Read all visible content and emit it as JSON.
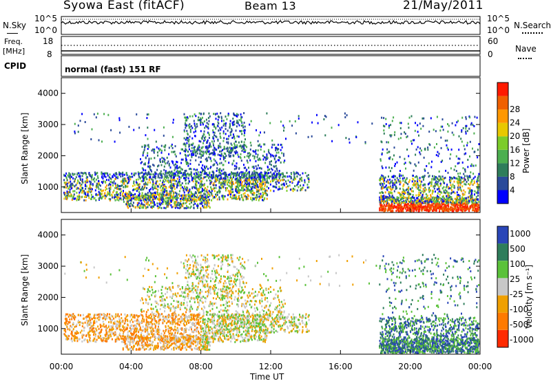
{
  "header": {
    "station": "Syowa East (fitACF)",
    "beam": "Beam 13",
    "date": "21/May/2011"
  },
  "noise_panel": {
    "left_label": "N.Sky",
    "right_label": "N.Search",
    "left_ticks": [
      "10^5",
      "10^0"
    ],
    "right_ticks": [
      "10^5",
      "10^0"
    ]
  },
  "freq_panel": {
    "left_label_1": "Freq.",
    "left_label_2": "[MHz]",
    "right_label": "Nave",
    "left_ticks": [
      "18",
      "8"
    ],
    "right_ticks": [
      "60",
      "0"
    ],
    "cpid_label": "CPID",
    "cpid_text": "normal (fast) 151 RF"
  },
  "colors": {
    "power": [
      "#0000ff",
      "#2a4a9a",
      "#2e7d5b",
      "#4caf50",
      "#7ccc2a",
      "#e8c800",
      "#ff9800",
      "#f06000",
      "#ff1a00"
    ],
    "velocity": [
      "#2a46b8",
      "#2e7d5b",
      "#5bc23a",
      "#c8c8c8",
      "#f0a000",
      "#ff7a00",
      "#ff2a00"
    ]
  },
  "chart_data": [
    {
      "type": "heatmap",
      "name": "power",
      "ylabel": "Slant Range [km]",
      "xlabel": "Time UT",
      "x_ticks": [
        "00:00",
        "04:00",
        "08:00",
        "12:00",
        "16:00",
        "20:00",
        "00:00"
      ],
      "y_ticks": [
        "1000",
        "2000",
        "3000",
        "4000"
      ],
      "ylim": [
        180,
        4500
      ],
      "colorbar_label": "Power [dB]",
      "colorbar_ticks": [
        "4",
        "8",
        "12",
        "16",
        "20",
        "24",
        "28"
      ]
    },
    {
      "type": "heatmap",
      "name": "velocity",
      "ylabel": "Slant Range [km]",
      "xlabel": "Time UT",
      "x_ticks": [
        "00:00",
        "04:00",
        "08:00",
        "12:00",
        "16:00",
        "20:00",
        "00:00"
      ],
      "y_ticks": [
        "1000",
        "2000",
        "3000",
        "4000"
      ],
      "ylim": [
        180,
        4500
      ],
      "colorbar_label": "Velocity [m s⁻¹]",
      "colorbar_ticks": [
        "1000",
        "500",
        "100",
        "25",
        "-25",
        "-100",
        "-500",
        "-1000"
      ]
    }
  ]
}
